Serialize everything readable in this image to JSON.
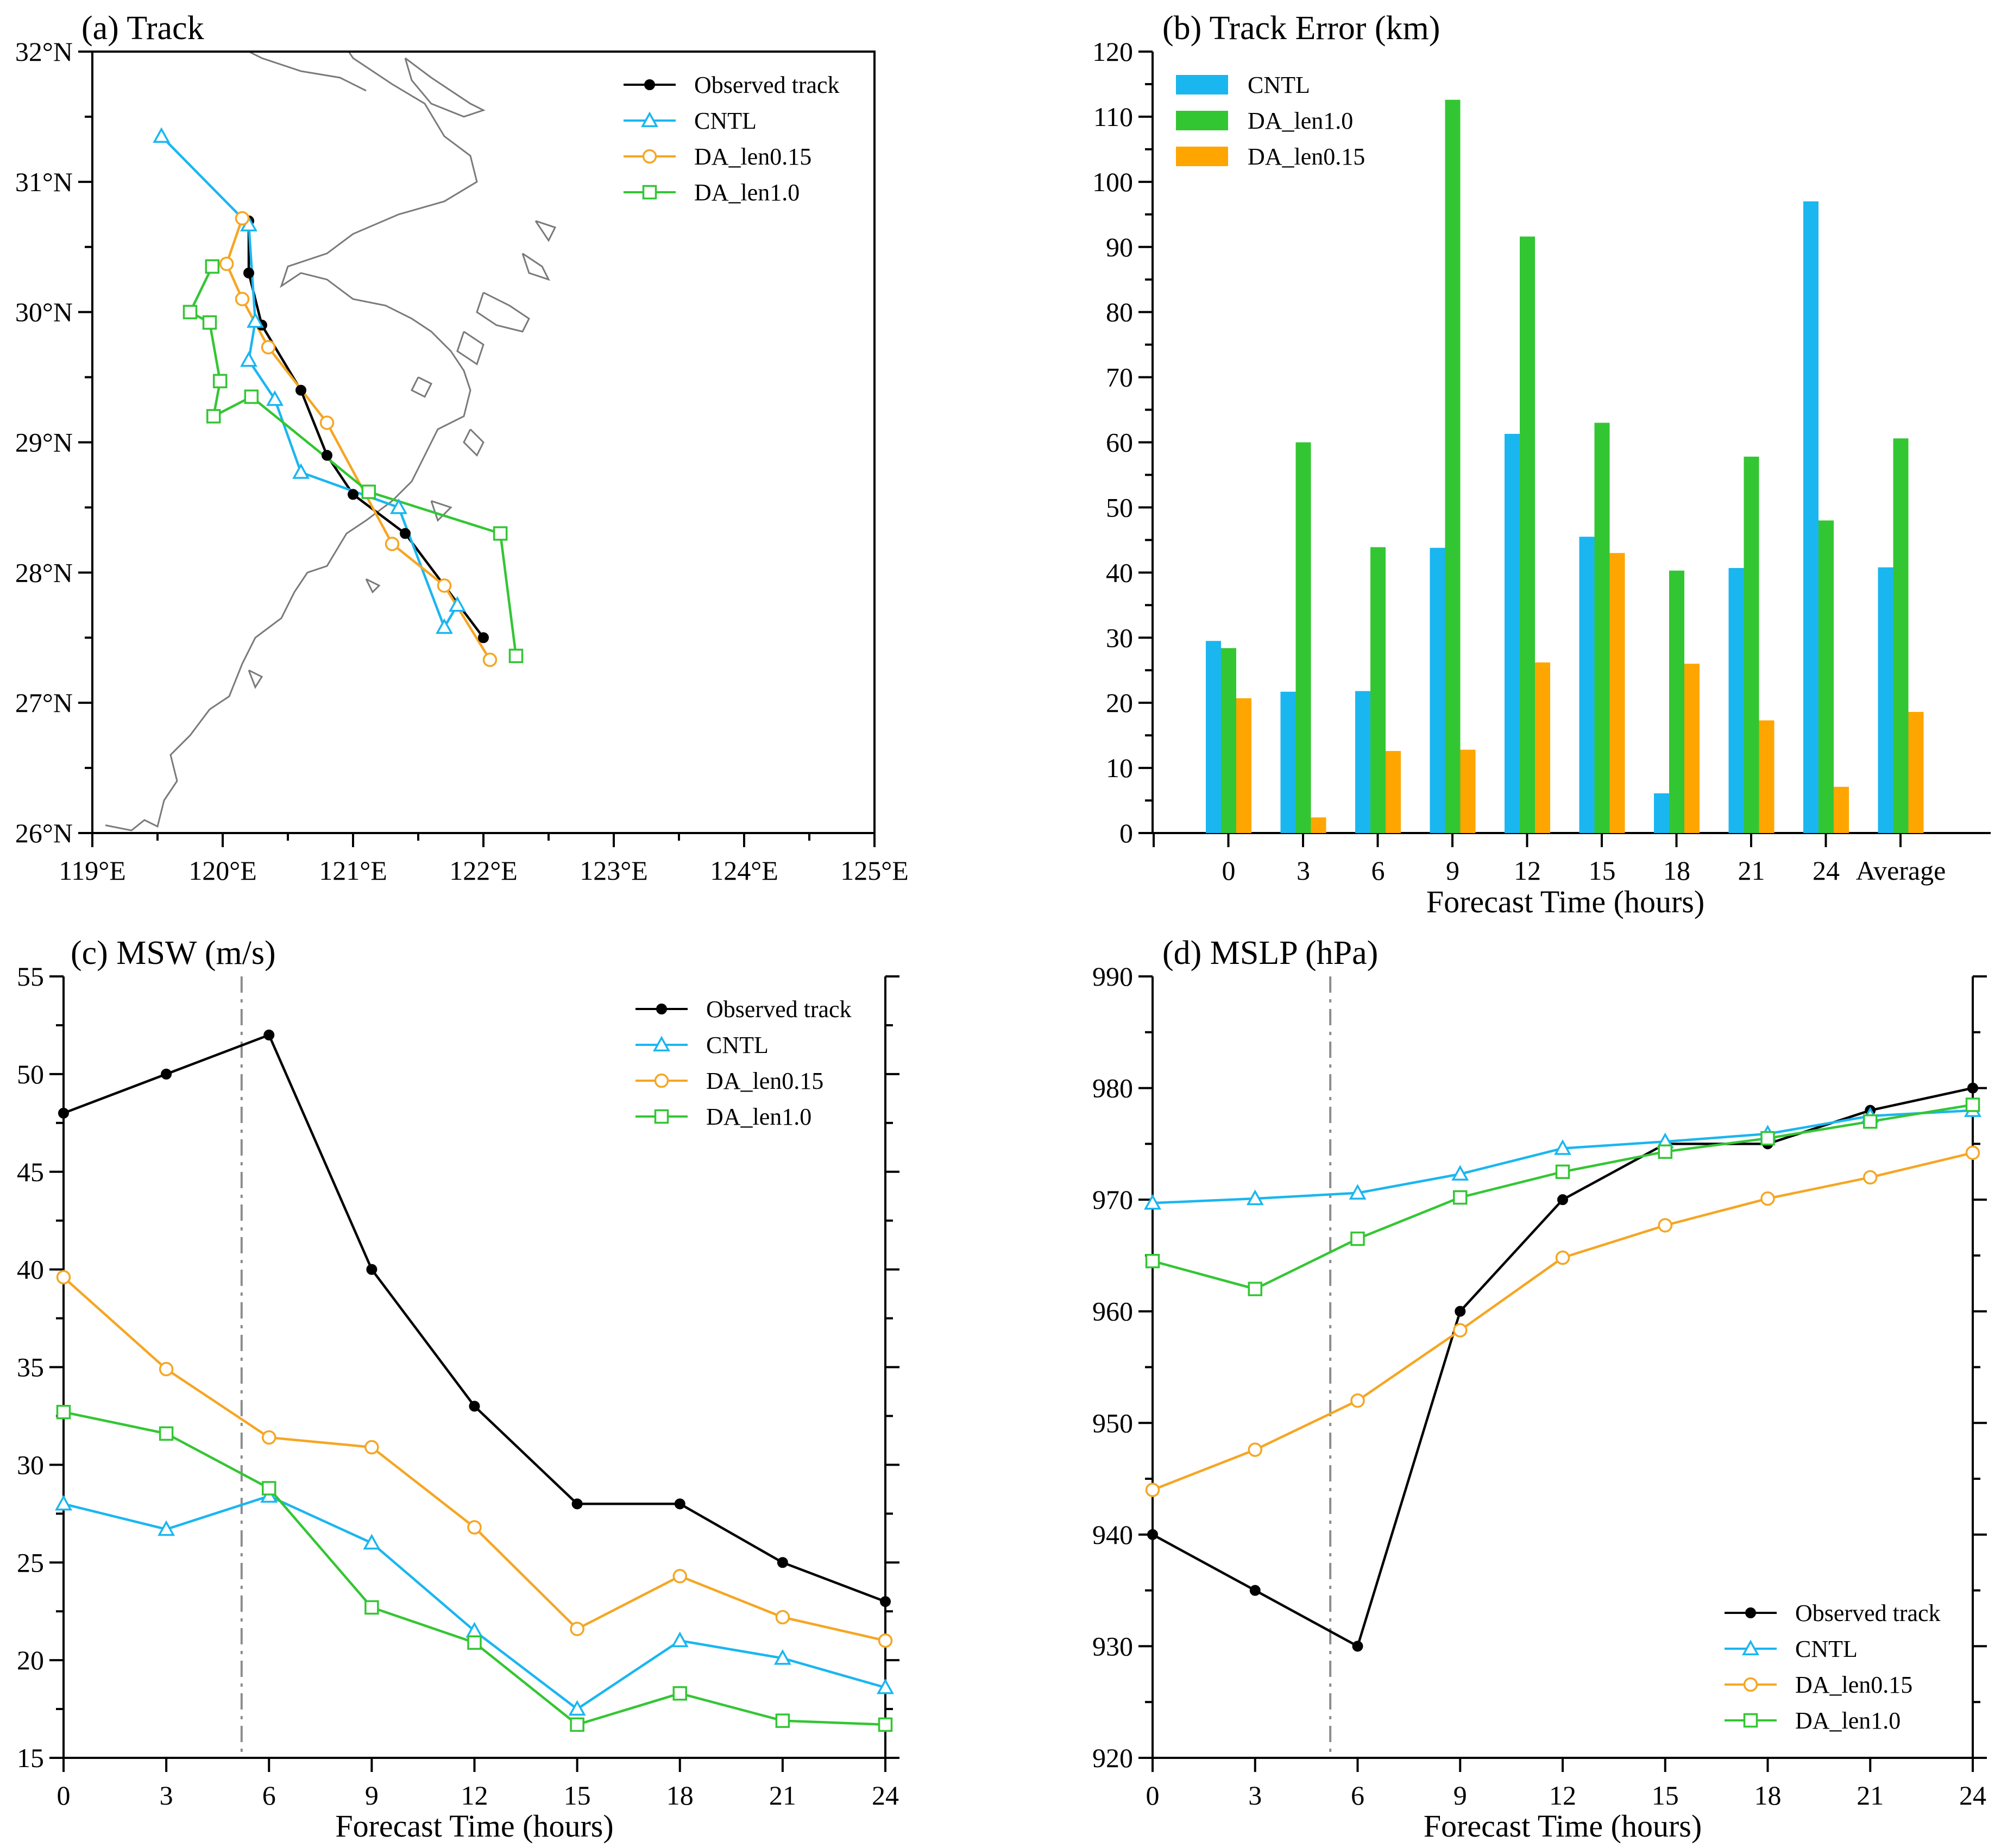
{
  "colors": {
    "observed": "#000000",
    "cntl": "#1ab6f0",
    "len015": "#f5a623",
    "len10": "#33c633",
    "bar_cntl": "#1ab6f0",
    "bar_len10": "#33c633",
    "bar_len015": "#ffa500",
    "vline": "#8c8c8c"
  },
  "chart_data": [
    {
      "panel": "a",
      "type": "line",
      "title": "(a)  Track",
      "xlim": [
        119,
        125
      ],
      "ylim": [
        26,
        32
      ],
      "xticks": [
        119,
        120,
        121,
        122,
        123,
        124,
        125
      ],
      "xtick_labels": [
        "119°E",
        "120°E",
        "121°E",
        "122°E",
        "123°E",
        "124°E",
        "125°E"
      ],
      "yticks": [
        26,
        27,
        28,
        29,
        30,
        31,
        32
      ],
      "ytick_labels": [
        "26°N",
        "27°N",
        "28°N",
        "29°N",
        "30°N",
        "31°N",
        "32°N"
      ],
      "legend": [
        "Observed track",
        "CNTL",
        "DA_len0.15",
        "DA_len1.0"
      ],
      "legend_position": "top-right",
      "series": [
        {
          "name": "Observed track",
          "marker": "dot",
          "points": [
            [
              122.0,
              27.5
            ],
            [
              121.7,
              27.9
            ],
            [
              121.4,
              28.3
            ],
            [
              121.0,
              28.6
            ],
            [
              120.8,
              28.9
            ],
            [
              120.6,
              29.4
            ],
            [
              120.3,
              29.9
            ],
            [
              120.2,
              30.3
            ],
            [
              120.2,
              30.7
            ]
          ]
        },
        {
          "name": "CNTL",
          "marker": "triangle",
          "points": [
            [
              121.8,
              27.75
            ],
            [
              121.7,
              27.58
            ],
            [
              121.35,
              28.5
            ],
            [
              120.6,
              28.77
            ],
            [
              120.4,
              29.33
            ],
            [
              120.2,
              29.63
            ],
            [
              120.25,
              29.93
            ],
            [
              120.2,
              30.67
            ],
            [
              119.53,
              31.35
            ]
          ]
        },
        {
          "name": "DA_len0.15",
          "marker": "circle",
          "points": [
            [
              122.05,
              27.33
            ],
            [
              121.7,
              27.9
            ],
            [
              121.3,
              28.22
            ],
            [
              120.8,
              29.15
            ],
            [
              120.35,
              29.73
            ],
            [
              120.15,
              30.1
            ],
            [
              120.03,
              30.37
            ],
            [
              120.15,
              30.72
            ]
          ]
        },
        {
          "name": "DA_len1.0",
          "marker": "square",
          "points": [
            [
              122.25,
              27.36
            ],
            [
              122.13,
              28.3
            ],
            [
              121.12,
              28.62
            ],
            [
              120.22,
              29.35
            ],
            [
              119.93,
              29.2
            ],
            [
              119.98,
              29.47
            ],
            [
              119.9,
              29.92
            ],
            [
              119.75,
              30.0
            ],
            [
              119.92,
              30.35
            ]
          ]
        }
      ]
    },
    {
      "panel": "b",
      "type": "bar",
      "title": "(b)  Track Error (km)",
      "xlabel": "Forecast Time (hours)",
      "categories": [
        "0",
        "3",
        "6",
        "9",
        "12",
        "15",
        "18",
        "21",
        "24",
        "Average"
      ],
      "ylim": [
        0,
        120
      ],
      "yticks": [
        0,
        10,
        20,
        30,
        40,
        50,
        60,
        70,
        80,
        90,
        100,
        110,
        120
      ],
      "legend_position": "top-left",
      "series": [
        {
          "name": "CNTL",
          "values": [
            29.5,
            21.7,
            21.8,
            43.8,
            61.3,
            45.5,
            6.1,
            40.7,
            97.0,
            40.8
          ]
        },
        {
          "name": "DA_len1.0",
          "values": [
            28.4,
            60.0,
            43.9,
            112.6,
            91.6,
            63.0,
            40.3,
            57.8,
            48.0,
            60.6
          ]
        },
        {
          "name": "DA_len0.15",
          "values": [
            20.7,
            2.4,
            12.6,
            12.8,
            26.2,
            43.0,
            26.0,
            17.3,
            7.1,
            18.6
          ]
        }
      ]
    },
    {
      "panel": "c",
      "type": "line",
      "title": "(c)  MSW (m/s)",
      "xlabel": "Forecast Time (hours)",
      "x": [
        0,
        3,
        6,
        9,
        12,
        15,
        18,
        21,
        24
      ],
      "xlim": [
        0,
        24
      ],
      "ylim": [
        15,
        55
      ],
      "yticks": [
        15,
        20,
        25,
        30,
        35,
        40,
        45,
        50,
        55
      ],
      "vline_x": 5.2,
      "legend_position": "top-right",
      "series": [
        {
          "name": "Observed track",
          "marker": "dot",
          "values": [
            48,
            50,
            52,
            40,
            33,
            28,
            28,
            25,
            23
          ]
        },
        {
          "name": "CNTL",
          "marker": "triangle",
          "values": [
            28.0,
            26.7,
            28.4,
            26.0,
            21.5,
            17.5,
            21.0,
            20.1,
            18.6
          ]
        },
        {
          "name": "DA_len0.15",
          "marker": "circle",
          "values": [
            39.6,
            34.9,
            31.4,
            30.9,
            26.8,
            21.6,
            24.3,
            22.2,
            21.0
          ]
        },
        {
          "name": "DA_len1.0",
          "marker": "square",
          "values": [
            32.7,
            31.6,
            28.8,
            22.7,
            20.9,
            16.7,
            18.3,
            16.9,
            16.7
          ]
        }
      ]
    },
    {
      "panel": "d",
      "type": "line",
      "title": "(d)  MSLP (hPa)",
      "xlabel": "Forecast Time (hours)",
      "x": [
        0,
        3,
        6,
        9,
        12,
        15,
        18,
        21,
        24
      ],
      "xlim": [
        0,
        24
      ],
      "ylim": [
        920,
        990
      ],
      "yticks": [
        920,
        930,
        940,
        950,
        960,
        970,
        980,
        990
      ],
      "vline_x": 5.2,
      "legend_position": "bottom-right",
      "series": [
        {
          "name": "Observed track",
          "marker": "dot",
          "values": [
            940,
            935,
            930,
            960,
            970,
            975,
            975,
            978,
            980
          ]
        },
        {
          "name": "CNTL",
          "marker": "triangle",
          "values": [
            969.7,
            970.1,
            970.6,
            972.3,
            974.6,
            975.2,
            975.9,
            977.5,
            978.0
          ]
        },
        {
          "name": "DA_len0.15",
          "marker": "circle",
          "values": [
            944.0,
            947.6,
            952.0,
            958.3,
            964.8,
            967.7,
            970.1,
            972.0,
            974.2
          ]
        },
        {
          "name": "DA_len1.0",
          "marker": "square",
          "values": [
            964.5,
            962.0,
            966.5,
            970.2,
            972.5,
            974.3,
            975.5,
            977.0,
            978.5
          ]
        }
      ]
    }
  ]
}
